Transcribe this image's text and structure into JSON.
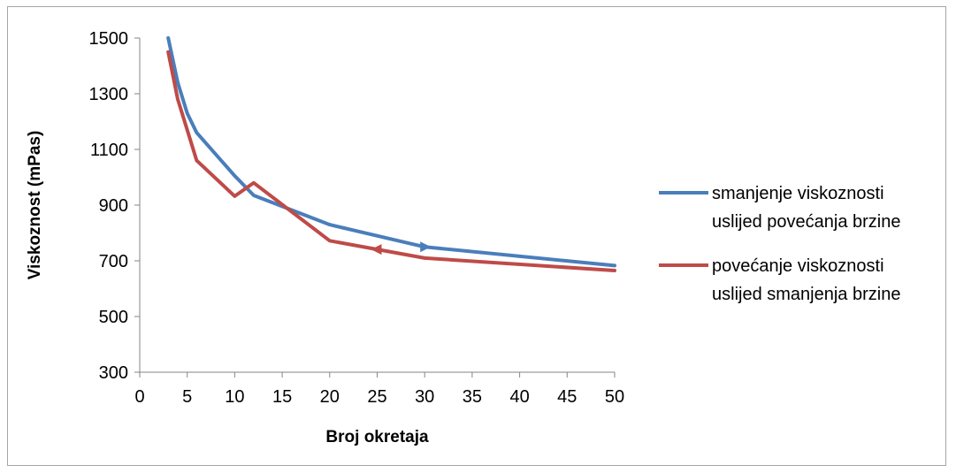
{
  "chart_data": {
    "type": "line",
    "xlabel": "Broj okretaja",
    "ylabel": "Viskoznost (mPas)",
    "xlim": [
      0,
      50
    ],
    "ylim": [
      300,
      1500
    ],
    "x_ticks": [
      "0",
      "5",
      "10",
      "15",
      "20",
      "25",
      "30",
      "35",
      "40",
      "45",
      "50"
    ],
    "y_ticks": [
      "300",
      "500",
      "700",
      "900",
      "1100",
      "1300",
      "1500"
    ],
    "grid": false,
    "legend_position": "right",
    "series": [
      {
        "name_lines": [
          "smanjenje viskoznosti",
          "uslijed povećanja brzine"
        ],
        "color": "#4a7ebb",
        "arrow_at": 30,
        "arrow_dir": "right",
        "points": [
          [
            3,
            1500
          ],
          [
            4,
            1340
          ],
          [
            5,
            1230
          ],
          [
            6,
            1160
          ],
          [
            10,
            1005
          ],
          [
            12,
            935
          ],
          [
            20,
            830
          ],
          [
            30,
            750
          ],
          [
            50,
            683
          ]
        ]
      },
      {
        "name_lines": [
          "povećanje viskoznosti",
          "uslijed smanjenja brzine"
        ],
        "color": "#be4b48",
        "arrow_at": 25,
        "arrow_dir": "left",
        "points": [
          [
            3,
            1450
          ],
          [
            4,
            1280
          ],
          [
            6,
            1060
          ],
          [
            10,
            932
          ],
          [
            12,
            980
          ],
          [
            20,
            772
          ],
          [
            30,
            710
          ],
          [
            50,
            665
          ]
        ]
      }
    ]
  }
}
